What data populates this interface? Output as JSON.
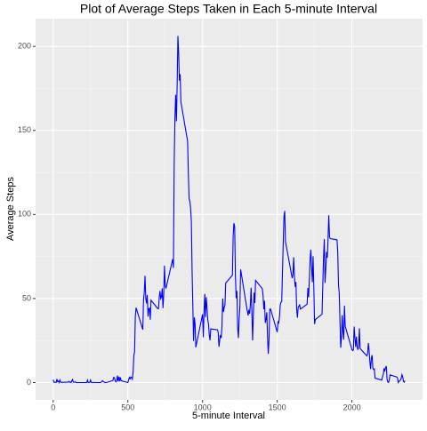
{
  "chart_data": {
    "type": "line",
    "title": "Plot of Average Steps Taken in Each 5-minute Interval",
    "x_label": "5-minute Interval",
    "y_label": "Average Steps",
    "color": "#0000ff",
    "x": [
      0,
      5,
      10,
      15,
      20,
      25,
      30,
      35,
      40,
      45,
      50,
      55,
      100,
      105,
      110,
      115,
      120,
      125,
      130,
      135,
      140,
      145,
      150,
      155,
      200,
      205,
      210,
      215,
      220,
      225,
      230,
      235,
      240,
      245,
      250,
      255,
      300,
      305,
      310,
      315,
      320,
      325,
      330,
      335,
      340,
      345,
      350,
      355,
      400,
      405,
      410,
      415,
      420,
      425,
      430,
      435,
      440,
      445,
      450,
      455,
      500,
      505,
      510,
      515,
      520,
      525,
      530,
      535,
      540,
      545,
      550,
      555,
      600,
      605,
      610,
      615,
      620,
      625,
      630,
      635,
      640,
      645,
      650,
      655,
      700,
      705,
      710,
      715,
      720,
      725,
      730,
      735,
      740,
      745,
      750,
      755,
      800,
      805,
      810,
      815,
      820,
      825,
      830,
      835,
      840,
      845,
      850,
      855,
      900,
      905,
      910,
      915,
      920,
      925,
      930,
      935,
      940,
      945,
      950,
      955,
      1000,
      1005,
      1010,
      1015,
      1020,
      1025,
      1030,
      1035,
      1040,
      1045,
      1050,
      1055,
      1100,
      1105,
      1110,
      1115,
      1120,
      1125,
      1130,
      1135,
      1140,
      1145,
      1150,
      1155,
      1200,
      1205,
      1210,
      1215,
      1220,
      1225,
      1230,
      1235,
      1240,
      1245,
      1250,
      1255,
      1300,
      1305,
      1310,
      1315,
      1320,
      1325,
      1330,
      1335,
      1340,
      1345,
      1350,
      1355,
      1400,
      1405,
      1410,
      1415,
      1420,
      1425,
      1430,
      1435,
      1440,
      1445,
      1450,
      1455,
      1500,
      1505,
      1510,
      1515,
      1520,
      1525,
      1530,
      1535,
      1540,
      1545,
      1550,
      1555,
      1600,
      1605,
      1610,
      1615,
      1620,
      1625,
      1630,
      1635,
      1640,
      1645,
      1650,
      1655,
      1700,
      1705,
      1710,
      1715,
      1720,
      1725,
      1730,
      1735,
      1740,
      1745,
      1750,
      1755,
      1800,
      1805,
      1810,
      1815,
      1820,
      1825,
      1830,
      1835,
      1840,
      1845,
      1850,
      1855,
      1900,
      1905,
      1910,
      1915,
      1920,
      1925,
      1930,
      1935,
      1940,
      1945,
      1950,
      1955,
      2000,
      2005,
      2010,
      2015,
      2020,
      2025,
      2030,
      2035,
      2040,
      2045,
      2050,
      2055,
      2100,
      2105,
      2110,
      2115,
      2120,
      2125,
      2130,
      2135,
      2140,
      2145,
      2150,
      2155,
      2200,
      2205,
      2210,
      2215,
      2220,
      2225,
      2230,
      2235,
      2240,
      2245,
      2250,
      2255,
      2300,
      2305,
      2310,
      2315,
      2320,
      2325,
      2330,
      2335,
      2340,
      2345,
      2350,
      2355
    ],
    "values": [
      1.7,
      0.3,
      0.1,
      0.2,
      0.1,
      2.1,
      0.5,
      0.9,
      0,
      1.5,
      0.3,
      0.1,
      0.3,
      0.7,
      0.2,
      0.3,
      0,
      1.1,
      1.8,
      0.2,
      0.2,
      0.4,
      0.3,
      0,
      0,
      0,
      0,
      0,
      0,
      0,
      1.5,
      0,
      0,
      0.2,
      1.5,
      0.1,
      0,
      0,
      0,
      0,
      0.2,
      0.6,
      1.1,
      0.5,
      0.3,
      0.1,
      0,
      0,
      1.2,
      3.1,
      2.9,
      0.9,
      0.4,
      1.2,
      4.1,
      0.7,
      3.5,
      0.8,
      3.1,
      1.1,
      0,
      1.6,
      3,
      2.2,
      3.3,
      3,
      2.1,
      6,
      16,
      18.3,
      39.5,
      44.5,
      31.5,
      49.3,
      53.8,
      63.5,
      50,
      47.1,
      52.2,
      39.3,
      44,
      44.2,
      37.4,
      49,
      44,
      44,
      50.8,
      54.5,
      49.9,
      50.9,
      56,
      44.3,
      52,
      69.5,
      57.8,
      56,
      73.4,
      68.2,
      129.4,
      157.5,
      171.2,
      155.4,
      177.3,
      206.2,
      195.9,
      179.6,
      183.4,
      167,
      143.5,
      124,
      109.1,
      108.1,
      103.7,
      95.9,
      66.2,
      45.2,
      24.8,
      38.8,
      35,
      21,
      40.6,
      27,
      42.4,
      52.7,
      38.9,
      50.8,
      44.3,
      37.4,
      34.7,
      28.3,
      25.1,
      31.9,
      31.4,
      29.7,
      21.3,
      25.5,
      28.4,
      26.5,
      33.4,
      50,
      42,
      44.6,
      46,
      59.2,
      63.9,
      87.6,
      94.8,
      92.8,
      63.4,
      50.2,
      54.5,
      32.4,
      26.5,
      37.7,
      45.1,
      67.3,
      42.3,
      39.9,
      43.3,
      41,
      46.2,
      56.4,
      42.8,
      25.1,
      40,
      53.5,
      47.3,
      60.8,
      55.8,
      51.9,
      43.6,
      48.7,
      35.5,
      37.5,
      41.8,
      27.5,
      17.1,
      26.1,
      43.6,
      43.8,
      30,
      36.1,
      35.5,
      38.8,
      46,
      47.8,
      48.1,
      65.3,
      82.9,
      98.7,
      102.1,
      84,
      62.1,
      64.1,
      74.5,
      63.2,
      56.9,
      59.8,
      43.9,
      38.6,
      44.7,
      45.5,
      46.2,
      43.7,
      46.6,
      56.3,
      50.7,
      61.2,
      73.4,
      79.1,
      68.9,
      59.7,
      75.1,
      56.5,
      34.8,
      37.5,
      40.7,
      58,
      74.7,
      85.3,
      59.3,
      67.8,
      77.7,
      74.2,
      85.3,
      99.5,
      86.6,
      85.6,
      84.9,
      77.8,
      58,
      53.4,
      36.3,
      20.7,
      27.4,
      40,
      30.2,
      25.5,
      45.7,
      33.5,
      19.6,
      19,
      19.3,
      33.3,
      26.8,
      21.2,
      27.3,
      21.3,
      19.5,
      21.3,
      32.3,
      20.2,
      15.9,
      17.2,
      23.5,
      19.2,
      12.5,
      8,
      14.7,
      16.3,
      8.7,
      7.8,
      8.1,
      2.6,
      1.5,
      3.7,
      4.8,
      8.5,
      7.1,
      8.7,
      9.8,
      2.2,
      0.3,
      0.1,
      1.6,
      4.6,
      3.3,
      2.8,
      0,
      0.8,
      1,
      1.6,
      2.6,
      4.7,
      3.3,
      0.6,
      0.2,
      1.1
    ],
    "xlim": [
      -117.75,
      2472.75
    ],
    "xticks": [
      0,
      500,
      1000,
      1500,
      2000
    ],
    "ylim": [
      -10.31,
      216.48
    ],
    "yticks": [
      0,
      50,
      100,
      150,
      200
    ],
    "grid": true
  }
}
